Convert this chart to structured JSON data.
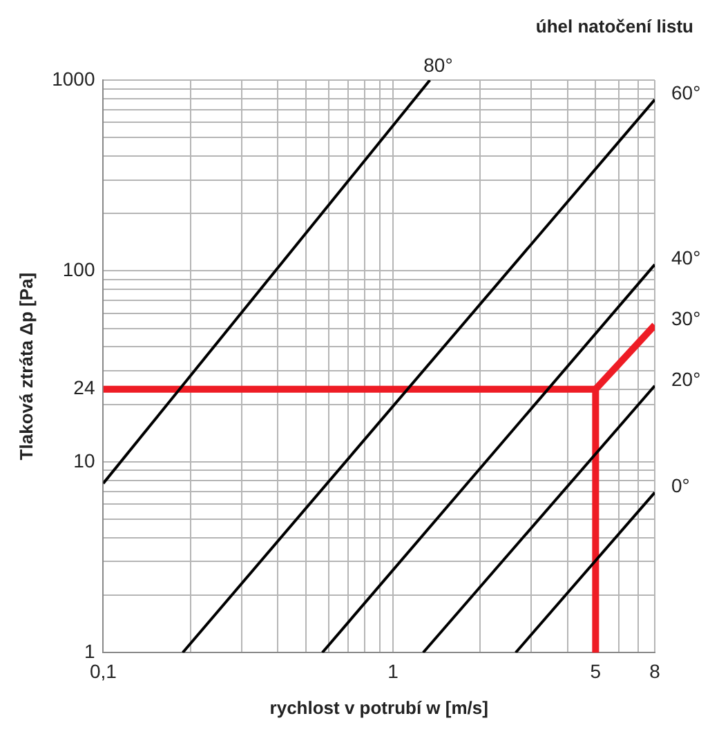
{
  "chart_data": {
    "type": "line",
    "xlabel": "rychlost v potrubí w [m/s]",
    "ylabel": "Tlaková ztráta Δp [Pa]",
    "annotations": [
      "úhel natočení listu"
    ],
    "log": "xy",
    "grid": true,
    "legend": false,
    "marker": "none",
    "line_style": "solid",
    "xlim": [
      0.1,
      8
    ],
    "ylim": [
      1,
      1000
    ],
    "xticks": [
      {
        "value": 0.1,
        "label": "0,1"
      },
      {
        "value": 0.2,
        "label": null
      },
      {
        "value": 0.3,
        "label": null
      },
      {
        "value": 0.4,
        "label": null
      },
      {
        "value": 0.5,
        "label": null
      },
      {
        "value": 0.6,
        "label": null
      },
      {
        "value": 0.7,
        "label": null
      },
      {
        "value": 0.8,
        "label": null
      },
      {
        "value": 0.9,
        "label": null
      },
      1,
      {
        "value": 2,
        "label": null
      },
      {
        "value": 3,
        "label": null
      },
      {
        "value": 4,
        "label": null
      },
      5,
      {
        "value": 6,
        "label": null
      },
      {
        "value": 7,
        "label": null
      },
      8
    ],
    "yticks": [
      1,
      {
        "value": 2,
        "label": null
      },
      {
        "value": 3,
        "label": null
      },
      {
        "value": 4,
        "label": null
      },
      {
        "value": 5,
        "label": null
      },
      {
        "value": 6,
        "label": null
      },
      {
        "value": 7,
        "label": null
      },
      {
        "value": 8,
        "label": null
      },
      {
        "value": 9,
        "label": null
      },
      10,
      {
        "value": 20,
        "label": null
      },
      24,
      {
        "value": 30,
        "label": null
      },
      {
        "value": 40,
        "label": null
      },
      {
        "value": 50,
        "label": null
      },
      {
        "value": 60,
        "label": null
      },
      {
        "value": 70,
        "label": null
      },
      {
        "value": 80,
        "label": null
      },
      {
        "value": 90,
        "label": null
      },
      100,
      {
        "value": 200,
        "label": null
      },
      {
        "value": 300,
        "label": null
      },
      {
        "value": 400,
        "label": null
      },
      {
        "value": 500,
        "label": null
      },
      {
        "value": 600,
        "label": null
      },
      {
        "value": 700,
        "label": null
      },
      {
        "value": 800,
        "label": null
      },
      {
        "value": 900,
        "label": null
      },
      1000
    ],
    "series": [
      {
        "name": "80°",
        "color": "#000000",
        "x": [
          0.1,
          1.34
        ],
        "values": [
          7.7,
          1000
        ]
      },
      {
        "name": "60°",
        "color": "#000000",
        "x": [
          0.188,
          8
        ],
        "values": [
          1,
          790
        ]
      },
      {
        "name": "40°",
        "color": "#000000",
        "x": [
          0.57,
          8
        ],
        "values": [
          1,
          108
        ]
      },
      {
        "name": "20°",
        "color": "#000000",
        "x": [
          1.27,
          8
        ],
        "values": [
          1,
          25
        ]
      },
      {
        "name": "0°",
        "color": "#000000",
        "x": [
          2.65,
          8
        ],
        "values": [
          1,
          6.9
        ]
      },
      {
        "color": "#ee1c25",
        "x": [
          0.1,
          5,
          5
        ],
        "values": [
          24,
          24,
          1
        ]
      },
      {
        "name": "30°",
        "color": "#ee1c25",
        "x": [
          5,
          8
        ],
        "values": [
          24,
          52
        ]
      }
    ]
  }
}
